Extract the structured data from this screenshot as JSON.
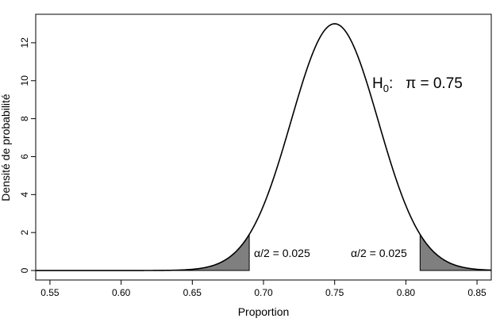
{
  "chart_data": {
    "type": "area",
    "xlabel": "Proportion",
    "ylabel": "Densité de probabilité",
    "xlim": [
      0.54,
      0.86
    ],
    "ylim": [
      -0.5,
      13.5
    ],
    "x_ticks": [
      0.55,
      0.6,
      0.65,
      0.7,
      0.75,
      0.8,
      0.85
    ],
    "x_tick_labels": [
      "0.55",
      "0.60",
      "0.65",
      "0.70",
      "0.75",
      "0.80",
      "0.85"
    ],
    "y_ticks": [
      0,
      2,
      4,
      6,
      8,
      10,
      12
    ],
    "y_tick_labels": [
      "0",
      "2",
      "4",
      "6",
      "8",
      "10",
      "12"
    ],
    "grid": false,
    "distribution": {
      "name": "normal",
      "mean": 0.75,
      "sd": 0.0306,
      "x_range": [
        0.54,
        0.86
      ],
      "peak_density": 13.0
    },
    "rejection_regions": [
      {
        "side": "left",
        "x_from": 0.54,
        "x_to": 0.69,
        "area": 0.025,
        "color": "#7f7f7f"
      },
      {
        "side": "right",
        "x_from": 0.81,
        "x_to": 0.86,
        "area": 0.025,
        "color": "#7f7f7f"
      }
    ],
    "annotations": {
      "hypothesis": {
        "H": "H",
        "sub": "0",
        "rest": ":   π = 0.75"
      },
      "alpha_left": "α/2 = 0.025",
      "alpha_right": "α/2 = 0.025"
    }
  }
}
